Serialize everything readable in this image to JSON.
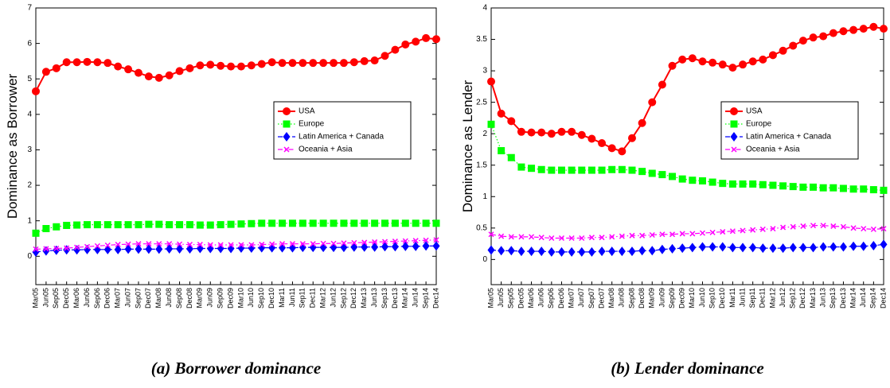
{
  "chart_data": [
    {
      "type": "line",
      "ylabel": "Dominance as Borrower",
      "caption": "(a) Borrower dominance",
      "categories": [
        "Mar05",
        "Jun05",
        "Sep05",
        "Dec05",
        "Mar06",
        "Jun06",
        "Sep06",
        "Dec06",
        "Mar07",
        "Jun07",
        "Sep07",
        "Dec07",
        "Mar08",
        "Jun08",
        "Sep08",
        "Dec08",
        "Mar09",
        "Jun09",
        "Sep09",
        "Dec09",
        "Mar10",
        "Jun10",
        "Sep10",
        "Dec10",
        "Mar11",
        "Jun11",
        "Sep11",
        "Dec11",
        "Mar12",
        "Jun12",
        "Sep12",
        "Dec12",
        "Mar13",
        "Jun13",
        "Sep13",
        "Dec13",
        "Mar14",
        "Jun14",
        "Sep14",
        "Dec14"
      ],
      "ylim": [
        -0.8,
        7
      ],
      "yticks": [
        0,
        1,
        2,
        3,
        4,
        5,
        6,
        7
      ],
      "legend": "right",
      "series": [
        {
          "name": "USA",
          "color": "#ff0000",
          "marker": "circle",
          "dash": "solid",
          "values": [
            4.65,
            5.2,
            5.3,
            5.47,
            5.47,
            5.48,
            5.47,
            5.45,
            5.35,
            5.27,
            5.17,
            5.07,
            5.03,
            5.1,
            5.22,
            5.3,
            5.38,
            5.4,
            5.37,
            5.35,
            5.35,
            5.38,
            5.42,
            5.47,
            5.45,
            5.45,
            5.45,
            5.45,
            5.45,
            5.45,
            5.45,
            5.47,
            5.5,
            5.52,
            5.65,
            5.82,
            5.97,
            6.05,
            6.15,
            6.12
          ]
        },
        {
          "name": "Europe",
          "color": "#00ff00",
          "marker": "square",
          "dash": "dotted",
          "values": [
            0.65,
            0.78,
            0.83,
            0.87,
            0.88,
            0.89,
            0.89,
            0.89,
            0.89,
            0.89,
            0.89,
            0.9,
            0.9,
            0.89,
            0.89,
            0.89,
            0.88,
            0.88,
            0.89,
            0.9,
            0.91,
            0.92,
            0.93,
            0.93,
            0.93,
            0.93,
            0.93,
            0.93,
            0.93,
            0.93,
            0.93,
            0.93,
            0.93,
            0.93,
            0.93,
            0.93,
            0.93,
            0.93,
            0.93,
            0.93
          ]
        },
        {
          "name": "Latin America + Canada",
          "color": "#0000ff",
          "marker": "diamond",
          "dash": "dashed",
          "values": [
            0.12,
            0.15,
            0.17,
            0.18,
            0.18,
            0.19,
            0.19,
            0.19,
            0.19,
            0.2,
            0.2,
            0.2,
            0.2,
            0.21,
            0.21,
            0.21,
            0.22,
            0.22,
            0.22,
            0.22,
            0.23,
            0.23,
            0.24,
            0.24,
            0.24,
            0.24,
            0.25,
            0.25,
            0.25,
            0.25,
            0.25,
            0.26,
            0.26,
            0.26,
            0.27,
            0.27,
            0.28,
            0.28,
            0.29,
            0.29
          ]
        },
        {
          "name": "Oceania + Asia",
          "color": "#ff00ff",
          "marker": "x",
          "dash": "dashdot",
          "values": [
            0.2,
            0.21,
            0.22,
            0.23,
            0.25,
            0.27,
            0.29,
            0.31,
            0.33,
            0.34,
            0.35,
            0.35,
            0.35,
            0.35,
            0.34,
            0.33,
            0.33,
            0.32,
            0.32,
            0.32,
            0.32,
            0.32,
            0.33,
            0.34,
            0.35,
            0.35,
            0.35,
            0.35,
            0.36,
            0.36,
            0.37,
            0.38,
            0.39,
            0.4,
            0.41,
            0.42,
            0.43,
            0.44,
            0.45,
            0.46
          ]
        }
      ]
    },
    {
      "type": "line",
      "ylabel": "Dominance as Lender",
      "caption": "(b) Lender dominance",
      "categories": [
        "Mar05",
        "Jun05",
        "Sep05",
        "Dec05",
        "Mar06",
        "Jun06",
        "Sep06",
        "Dec06",
        "Mar07",
        "Jun07",
        "Sep07",
        "Dec07",
        "Mar08",
        "Jun08",
        "Sep08",
        "Dec08",
        "Mar09",
        "Jun09",
        "Sep09",
        "Dec09",
        "Mar10",
        "Jun10",
        "Sep10",
        "Dec10",
        "Mar11",
        "Jun11",
        "Sep11",
        "Dec11",
        "Mar12",
        "Jun12",
        "Sep12",
        "Dec12",
        "Mar13",
        "Jun13",
        "Sep13",
        "Dec13",
        "Mar14",
        "Jun14",
        "Sep14",
        "Dec14"
      ],
      "ylim": [
        -0.4,
        4
      ],
      "yticks": [
        0,
        0.5,
        1,
        1.5,
        2,
        2.5,
        3,
        3.5,
        4
      ],
      "legend": "right",
      "series": [
        {
          "name": "USA",
          "color": "#ff0000",
          "marker": "circle",
          "dash": "solid",
          "values": [
            2.83,
            2.32,
            2.2,
            2.03,
            2.02,
            2.02,
            2.0,
            2.03,
            2.03,
            1.98,
            1.92,
            1.85,
            1.77,
            1.72,
            1.93,
            2.17,
            2.5,
            2.78,
            3.08,
            3.18,
            3.2,
            3.15,
            3.13,
            3.1,
            3.05,
            3.1,
            3.15,
            3.18,
            3.25,
            3.32,
            3.4,
            3.48,
            3.53,
            3.55,
            3.6,
            3.63,
            3.65,
            3.67,
            3.7,
            3.67
          ]
        },
        {
          "name": "Europe",
          "color": "#00ff00",
          "marker": "square",
          "dash": "dotted",
          "values": [
            2.15,
            1.73,
            1.62,
            1.47,
            1.45,
            1.43,
            1.42,
            1.42,
            1.42,
            1.42,
            1.42,
            1.42,
            1.43,
            1.43,
            1.42,
            1.4,
            1.37,
            1.35,
            1.32,
            1.28,
            1.26,
            1.25,
            1.23,
            1.21,
            1.2,
            1.2,
            1.2,
            1.19,
            1.18,
            1.17,
            1.16,
            1.15,
            1.15,
            1.14,
            1.14,
            1.13,
            1.12,
            1.12,
            1.11,
            1.1
          ]
        },
        {
          "name": "Latin America + Canada",
          "color": "#0000ff",
          "marker": "diamond",
          "dash": "dashed",
          "values": [
            0.15,
            0.14,
            0.14,
            0.13,
            0.13,
            0.13,
            0.12,
            0.12,
            0.12,
            0.12,
            0.12,
            0.13,
            0.13,
            0.13,
            0.13,
            0.14,
            0.14,
            0.16,
            0.17,
            0.18,
            0.19,
            0.2,
            0.2,
            0.2,
            0.19,
            0.19,
            0.19,
            0.18,
            0.18,
            0.18,
            0.19,
            0.19,
            0.19,
            0.2,
            0.2,
            0.2,
            0.21,
            0.21,
            0.22,
            0.24
          ]
        },
        {
          "name": "Oceania + Asia",
          "color": "#ff00ff",
          "marker": "x",
          "dash": "dashdot",
          "values": [
            0.4,
            0.37,
            0.36,
            0.36,
            0.36,
            0.35,
            0.34,
            0.34,
            0.34,
            0.34,
            0.35,
            0.35,
            0.36,
            0.37,
            0.38,
            0.38,
            0.39,
            0.4,
            0.4,
            0.41,
            0.41,
            0.42,
            0.43,
            0.44,
            0.45,
            0.46,
            0.47,
            0.48,
            0.49,
            0.51,
            0.52,
            0.53,
            0.54,
            0.54,
            0.53,
            0.52,
            0.5,
            0.49,
            0.48,
            0.49
          ]
        }
      ]
    }
  ]
}
